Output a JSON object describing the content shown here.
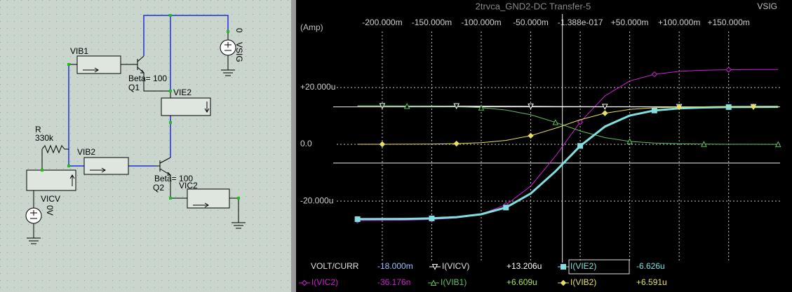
{
  "schematic": {
    "labels": {
      "vsig": "VSIG",
      "vsig_value": "0",
      "vib1": "VIB1",
      "q1_beta": "Beta= 100",
      "q1": "Q1",
      "vie2": "VIE2",
      "r": "R",
      "r_value": "330k",
      "vib2": "VIB2",
      "q2_beta": "Beta= 100",
      "q2": "Q2",
      "vic2": "VIC2",
      "vicv": "VICV",
      "vicv_value": "0V"
    }
  },
  "chart_data": {
    "type": "line",
    "title": "2trvca_GND2-DC Transfer-5",
    "source_label": "VSIG",
    "y_label": "(Amp)",
    "x": [
      -225,
      -200,
      -175,
      -150,
      -125,
      -100,
      -75,
      -50,
      -25,
      0,
      25,
      50,
      75,
      100,
      125,
      150,
      175,
      200
    ],
    "xlim": [
      -285,
      214
    ],
    "xticks": [
      {
        "value": -200,
        "label": "-200.000m"
      },
      {
        "value": -150,
        "label": "-150.000m"
      },
      {
        "value": -100,
        "label": "-100.000m"
      },
      {
        "value": -50,
        "label": "-50.000m"
      },
      {
        "value": -1.388e-14,
        "label": "-1.388e-017"
      },
      {
        "value": 50,
        "label": "+50.000m"
      },
      {
        "value": 100,
        "label": "+100.000m"
      },
      {
        "value": 150,
        "label": "+150.000m"
      }
    ],
    "ylim": [
      -41.7,
      44.7
    ],
    "yticks": [
      {
        "value": 20,
        "label": "+20.000u"
      },
      {
        "value": 0,
        "label": "0.0"
      },
      {
        "value": -20,
        "label": "-20.000u"
      }
    ],
    "grid": true,
    "series": [
      {
        "name": "I(VIC2)",
        "color": "#d020d0",
        "marker": "diamond-open",
        "values": [
          -26.88,
          -26.84,
          -26.75,
          -26.52,
          -25.94,
          -24.55,
          -21.36,
          -14.75,
          -4.19,
          7.85,
          17.07,
          22.3,
          24.69,
          25.71,
          26.12,
          26.29,
          26.36,
          26.38
        ]
      },
      {
        "name": "I(VICV)",
        "color": "#ffffff",
        "marker": "triangle-down-open",
        "values": [
          13.52,
          13.51,
          13.5,
          13.49,
          13.47,
          13.45,
          13.42,
          13.38,
          13.33,
          13.29,
          13.26,
          13.24,
          13.22,
          13.21,
          13.21,
          13.2,
          13.2,
          13.2
        ]
      },
      {
        "name": "I(VIB1)",
        "color": "#60c060",
        "marker": "triangle-up-open",
        "values": [
          13.49,
          13.48,
          13.46,
          13.4,
          13.26,
          12.91,
          12.1,
          10.42,
          7.75,
          4.7,
          2.36,
          1.04,
          0.43,
          0.18,
          0.07,
          0.03,
          0.01,
          0.0
        ]
      },
      {
        "name": "I(VIE2)",
        "color": "#80e0e0",
        "marker": "square",
        "values": [
          -26.38,
          -26.35,
          -26.29,
          -26.11,
          -25.69,
          -24.66,
          -22.28,
          -17.37,
          -9.53,
          -0.58,
          6.27,
          10.15,
          11.93,
          12.69,
          12.99,
          13.12,
          13.17,
          13.19
        ]
      },
      {
        "name": "I(VIB2)",
        "color": "#e8e060",
        "marker": "diamond",
        "values": [
          0.01,
          0.02,
          0.04,
          0.1,
          0.24,
          0.59,
          1.38,
          3.03,
          5.67,
          8.67,
          10.97,
          12.28,
          12.87,
          13.13,
          13.23,
          13.27,
          13.29,
          13.3
        ]
      }
    ],
    "cursors": {
      "x": -18,
      "y": [
        13.206,
        -6.626
      ]
    }
  },
  "readout": {
    "header": "VOLT/CURR",
    "cursor_x": "-18.000m",
    "values": [
      "+13.206u",
      "-6.626u",
      "-36.176n",
      "+6.609u",
      "+6.591u"
    ]
  }
}
